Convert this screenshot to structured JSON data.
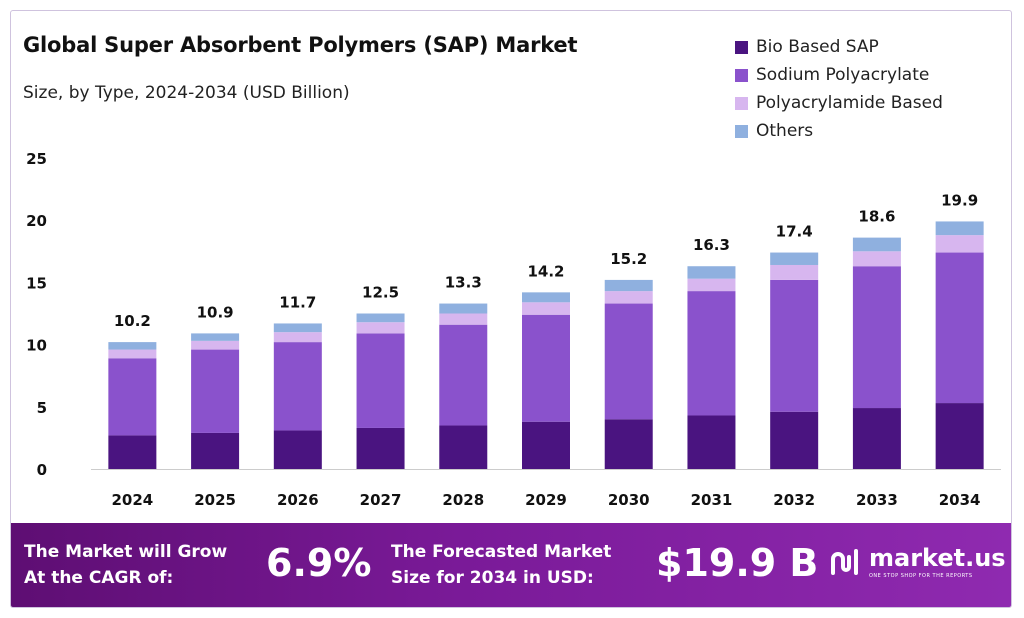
{
  "header": {
    "title": "Global Super Absorbent Polymers (SAP) Market",
    "subtitle": "Size, by Type, 2024-2034 (USD Billion)"
  },
  "legend": [
    {
      "label": "Bio Based SAP",
      "color": "#4a1480"
    },
    {
      "label": "Sodium Polyacrylate",
      "color": "#8a52cc"
    },
    {
      "label": "Polyacrylamide Based",
      "color": "#d7b6ef"
    },
    {
      "label": "Others",
      "color": "#8fb0df"
    }
  ],
  "chart_data": {
    "type": "bar",
    "stacked": true,
    "categories": [
      "2024",
      "2025",
      "2026",
      "2027",
      "2028",
      "2029",
      "2030",
      "2031",
      "2032",
      "2033",
      "2034"
    ],
    "series": [
      {
        "name": "Bio Based SAP",
        "values": [
          2.7,
          2.9,
          3.1,
          3.3,
          3.5,
          3.8,
          4.0,
          4.3,
          4.6,
          4.9,
          5.3
        ]
      },
      {
        "name": "Sodium Polyacrylate",
        "values": [
          6.2,
          6.7,
          7.1,
          7.6,
          8.1,
          8.6,
          9.3,
          10.0,
          10.6,
          11.4,
          12.1
        ]
      },
      {
        "name": "Polyacrylamide Based",
        "values": [
          0.7,
          0.7,
          0.8,
          0.9,
          0.9,
          1.0,
          1.0,
          1.0,
          1.2,
          1.2,
          1.4
        ]
      },
      {
        "name": "Others",
        "values": [
          0.6,
          0.6,
          0.7,
          0.7,
          0.8,
          0.8,
          0.9,
          1.0,
          1.0,
          1.1,
          1.1
        ]
      }
    ],
    "totals": [
      "10.2",
      "10.9",
      "11.7",
      "12.5",
      "13.3",
      "14.2",
      "15.2",
      "16.3",
      "17.4",
      "18.6",
      "19.9"
    ],
    "yticks": [
      "0",
      "5",
      "10",
      "15",
      "20",
      "25"
    ],
    "ylim": [
      0,
      25
    ],
    "grid": false,
    "legend_position": "top-right"
  },
  "footer": {
    "cagr_text_line1": "The Market will Grow",
    "cagr_text_line2": "At the CAGR of:",
    "cagr_value": "6.9%",
    "forecast_text_line1": "The Forecasted Market",
    "forecast_text_line2": "Size for 2034 in USD:",
    "forecast_value": "$19.9 B",
    "brand_name": "market.us",
    "brand_tagline": "ONE STOP SHOP FOR THE REPORTS"
  }
}
